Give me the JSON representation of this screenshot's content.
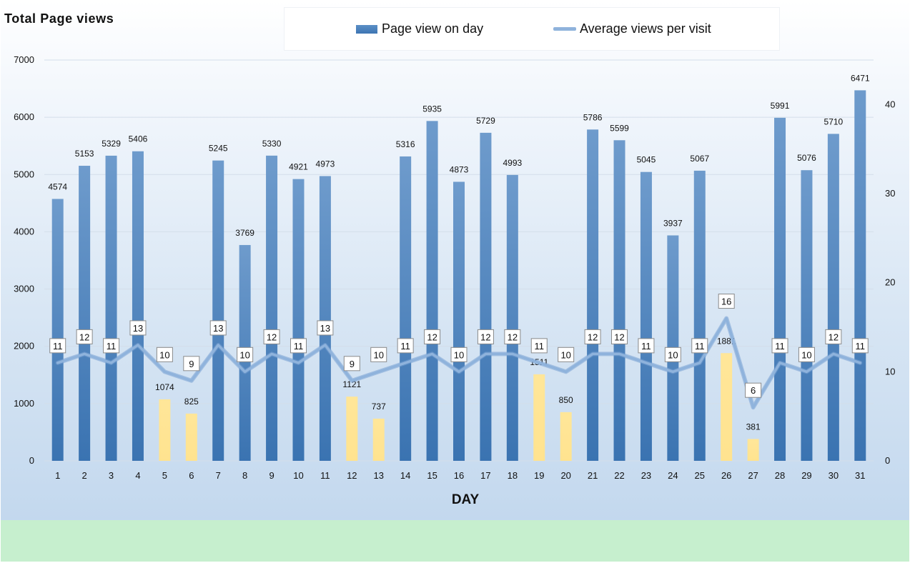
{
  "chart_data": {
    "type": "bar",
    "title": "Total Page views",
    "xlabel": "DAY",
    "ylabel": "",
    "ylim": [
      0,
      7000
    ],
    "y2lim": [
      0,
      45
    ],
    "yticks": [
      0,
      1000,
      2000,
      3000,
      4000,
      5000,
      6000,
      7000
    ],
    "y2ticks": [
      0,
      10,
      20,
      30,
      40
    ],
    "grid": true,
    "legend": "top-center",
    "categories": [
      "1",
      "2",
      "3",
      "4",
      "5",
      "6",
      "7",
      "8",
      "9",
      "10",
      "11",
      "12",
      "13",
      "14",
      "15",
      "16",
      "17",
      "18",
      "19",
      "20",
      "21",
      "22",
      "23",
      "24",
      "25",
      "26",
      "27",
      "28",
      "29",
      "30",
      "31"
    ],
    "series": [
      {
        "name": "Page view on day",
        "type": "bar",
        "axis": "left",
        "values": [
          4574,
          5153,
          5329,
          5406,
          1074,
          825,
          5245,
          3769,
          5330,
          4921,
          4973,
          1121,
          737,
          5316,
          5935,
          4873,
          5729,
          4993,
          1511,
          850,
          5786,
          5599,
          5045,
          3937,
          5067,
          1881,
          381,
          5991,
          5076,
          5710,
          6471
        ]
      },
      {
        "name": "Average views per visit",
        "type": "line",
        "axis": "right",
        "values": [
          11,
          12,
          11,
          13,
          10,
          9,
          13,
          10,
          12,
          11,
          13,
          9,
          10,
          11,
          12,
          10,
          12,
          12,
          11,
          10,
          12,
          12,
          11,
          10,
          11,
          16,
          6,
          11,
          10,
          12,
          11
        ]
      }
    ],
    "highlight_days": [
      "5",
      "6",
      "12",
      "13",
      "19",
      "20",
      "26",
      "27"
    ],
    "colors": {
      "bar": "#3f78b6",
      "bar_light": "#6e9bcc",
      "highlight": "#ffe699",
      "line": "#8fb3dc",
      "gridline": "#d3deea"
    }
  }
}
